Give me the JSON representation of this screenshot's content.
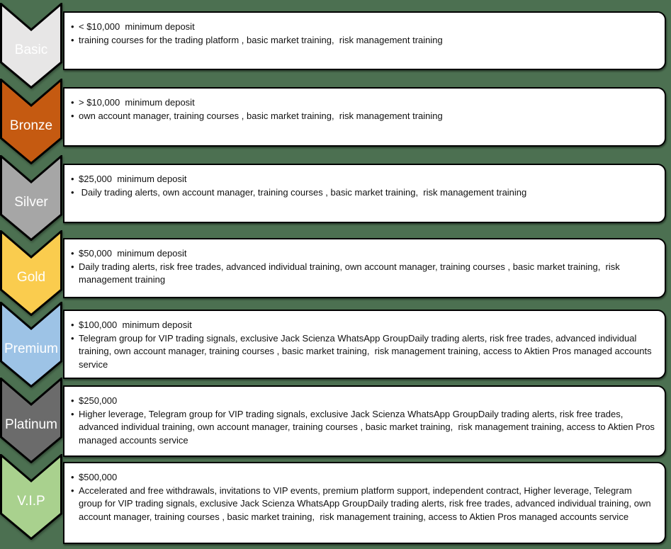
{
  "diagram": {
    "background_color": "#4C7051",
    "box_fill_color": "#FFFFFF",
    "box_border_color": "#000000",
    "bullet_text_color": "#111111",
    "label_text_color": "#FFFFFF",
    "bullet_char": "•",
    "tiers": [
      {
        "label": "Basic",
        "color": "#E7E6E6",
        "bullets": [
          "< $10,000  minimum deposit",
          "training courses for the trading platform , basic market training,  risk management training"
        ]
      },
      {
        "label": "Bronze",
        "color": "#C55A11",
        "bullets": [
          "> $10,000  minimum deposit",
          "own account manager, training courses , basic market training,  risk management training"
        ]
      },
      {
        "label": "Silver",
        "color": "#A6A6A6",
        "bullets": [
          "$25,000  minimum deposit",
          " Daily trading alerts, own account manager, training courses , basic market training,  risk management training"
        ]
      },
      {
        "label": "Gold",
        "color": "#FACC4E",
        "bullets": [
          "$50,000  minimum deposit",
          "Daily trading alerts, risk free trades, advanced individual training, own account manager, training courses , basic market training,  risk management training"
        ]
      },
      {
        "label": "Premium",
        "color": "#9DC3E6",
        "bullets": [
          "$100,000  minimum deposit",
          "Telegram group for VIP trading signals, exclusive Jack Scienza WhatsApp GroupDaily trading alerts, risk free trades, advanced individual training, own account manager, training courses , basic market training,  risk management training, access to Aktien Pros managed accounts service"
        ]
      },
      {
        "label": "Platinum",
        "color": "#6B6B6B",
        "bullets": [
          "$250,000",
          "Higher leverage, Telegram group for VIP trading signals, exclusive Jack Scienza WhatsApp GroupDaily trading alerts, risk free trades, advanced individual training, own account manager, training courses , basic market training,  risk management training, access to Aktien Pros managed accounts service"
        ]
      },
      {
        "label": "V.I.P",
        "color": "#A9D18E",
        "bullets": [
          "$500,000",
          "Accelerated and free withdrawals, invitations to VIP events, premium platform support, independent contract, Higher leverage, Telegram group for VIP trading signals, exclusive Jack Scienza WhatsApp GroupDaily trading alerts, risk free trades, advanced individual training, own account manager, training courses , basic market training,  risk management training, access to Aktien Pros managed accounts service"
        ]
      }
    ]
  }
}
